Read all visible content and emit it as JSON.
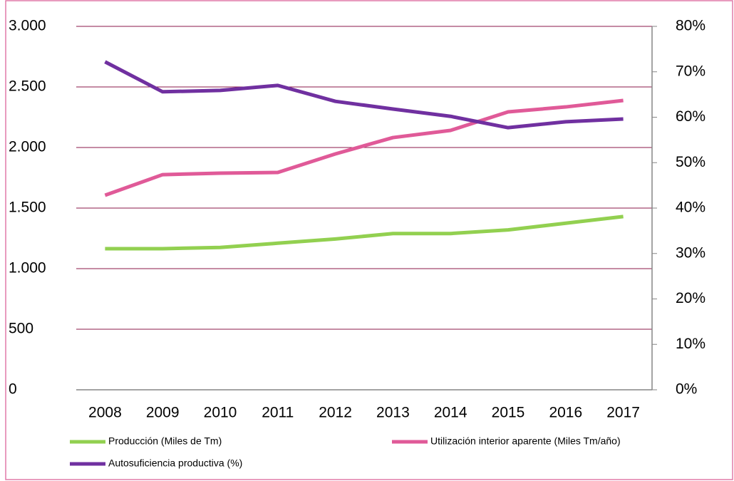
{
  "chart_data": {
    "type": "line",
    "categories": [
      "2008",
      "2009",
      "2010",
      "2011",
      "2012",
      "2013",
      "2014",
      "2015",
      "2016",
      "2017"
    ],
    "series": [
      {
        "name": "Producción (Miles de Tm)",
        "color": "#92d050",
        "values": [
          1165,
          1165,
          1175,
          1210,
          1245,
          1290,
          1290,
          1320,
          1375,
          1430
        ]
      },
      {
        "name": "Utilización interior aparente (Miles Tm/año)",
        "color": "#e05a98",
        "values": [
          1606,
          1776,
          1788,
          1794,
          1947,
          2082,
          2141,
          2294,
          2335,
          2388
        ]
      },
      {
        "name": "Autosuficiencia productiva (%)",
        "color": "#7030a0",
        "axis": "y2",
        "values": [
          72.2,
          65.6,
          65.9,
          67.0,
          63.5,
          61.8,
          60.2,
          57.7,
          59.0,
          59.6
        ]
      }
    ],
    "ylim": [
      0,
      3000
    ],
    "yticks": [
      0,
      500,
      {
        "value": 1000,
        "label": "1.000"
      },
      {
        "value": 1500,
        "label": "1.500"
      },
      {
        "value": 2000,
        "label": "2.000"
      },
      {
        "value": 2500,
        "label": "2.500"
      },
      {
        "value": 3000,
        "label": "3.000"
      }
    ],
    "y2lim": [
      0,
      80
    ],
    "y2ticks": [
      {
        "value": 0,
        "label": "0%"
      },
      {
        "value": 10,
        "label": "10%"
      },
      {
        "value": 20,
        "label": "20%"
      },
      {
        "value": 30,
        "label": "30%"
      },
      {
        "value": 40,
        "label": "40%"
      },
      {
        "value": 50,
        "label": "50%"
      },
      {
        "value": 60,
        "label": "60%"
      },
      {
        "value": 70,
        "label": "70%"
      },
      {
        "value": 80,
        "label": "80%"
      }
    ],
    "grid": true,
    "legend": "bottom"
  }
}
